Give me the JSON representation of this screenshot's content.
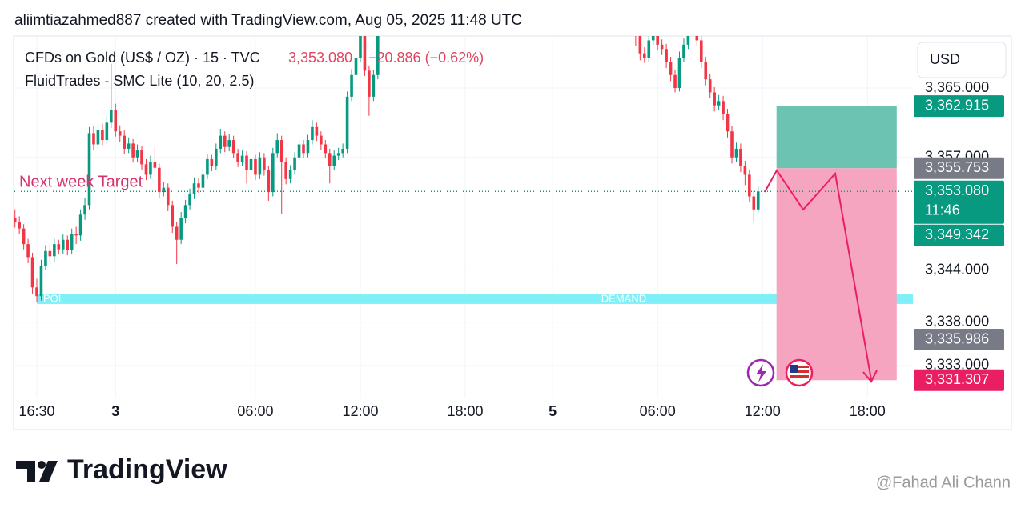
{
  "header": "aliimtiazahmed887 created with TradingView.com, Aug 05, 2025 11:48 UTC",
  "logo": "TradingView",
  "watermark": "@Fahad Ali Chann",
  "chart_data": {
    "type": "candlestick",
    "legend": {
      "symbol": "CFDs on Gold (US$ / OZ) · 15 · TVC",
      "price": "3,353.080",
      "change": "−20.886 (−0.62%)",
      "indicator": "FluidTrades - SMC Lite  (10, 20, 2.5)"
    },
    "currency": "USD",
    "up_color": "#089981",
    "down_color": "#f23645",
    "xlim": [
      -5.13,
      200.4
    ],
    "xticks": [
      {
        "value": 0,
        "label": "16:30"
      },
      {
        "value": 18,
        "label": "3",
        "bold": true
      },
      {
        "value": 50,
        "label": "06:00"
      },
      {
        "value": 74,
        "label": "12:00"
      },
      {
        "value": 98,
        "label": "18:00"
      },
      {
        "value": 118,
        "label": "5",
        "bold": true
      },
      {
        "value": 142,
        "label": "06:00"
      },
      {
        "value": 166,
        "label": "12:00"
      },
      {
        "value": 190,
        "label": "18:00"
      }
    ],
    "ylim": [
      3329.3,
      3371.0
    ],
    "yticks": [
      {
        "value": 3365,
        "label": "3,365.000"
      },
      {
        "value": 3357,
        "label": "3,357.000"
      },
      {
        "value": 3344,
        "label": "3,344.000"
      },
      {
        "value": 3338,
        "label": "3,338.000"
      },
      {
        "value": 3333,
        "label": "3,333.000"
      }
    ],
    "grid": true,
    "x": [
      -5,
      -4,
      -3,
      -2,
      -1,
      0,
      1,
      2,
      3,
      4,
      5,
      6,
      7,
      8,
      9,
      10,
      11,
      12,
      13,
      14,
      15,
      16,
      17,
      18,
      19,
      20,
      21,
      22,
      23,
      24,
      25,
      26,
      27,
      28,
      29,
      30,
      31,
      32,
      33,
      34,
      35,
      36,
      37,
      38,
      39,
      40,
      41,
      42,
      43,
      44,
      45,
      46,
      47,
      48,
      49,
      50,
      51,
      52,
      53,
      54,
      55,
      56,
      57,
      58,
      59,
      60,
      61,
      62,
      63,
      64,
      65,
      66,
      67,
      68,
      69,
      70,
      71,
      72,
      73,
      74,
      75,
      76,
      77,
      78,
      79,
      137,
      138,
      139,
      140,
      141,
      142,
      143,
      144,
      145,
      146,
      147,
      148,
      149,
      150,
      151,
      152,
      153,
      154,
      155,
      156,
      157,
      158,
      159,
      160,
      161,
      162,
      163,
      164,
      165
    ],
    "open": [
      3350.0,
      3349.5,
      3348.8,
      3347.0,
      3345.5,
      3342.0,
      3341.0,
      3344.5,
      3346.2,
      3345.6,
      3347.0,
      3346.4,
      3347.5,
      3346.3,
      3348.2,
      3348.0,
      3350.4,
      3351.5,
      3359.8,
      3358.5,
      3360.2,
      3359.0,
      3361.0,
      3362.5,
      3360.0,
      3359.5,
      3358.0,
      3358.6,
      3357.0,
      3357.8,
      3356.2,
      3355.0,
      3356.5,
      3355.8,
      3353.0,
      3353.5,
      3351.5,
      3349.0,
      3347.5,
      3350.0,
      3351.5,
      3352.8,
      3354.0,
      3353.5,
      3355.0,
      3356.8,
      3356.0,
      3358.0,
      3359.5,
      3358.2,
      3359.0,
      3357.5,
      3356.5,
      3357.2,
      3355.5,
      3356.8,
      3355.0,
      3357.0,
      3355.5,
      3353.0,
      3357.5,
      3359.0,
      3356.5,
      3354.5,
      3355.5,
      3357.0,
      3358.5,
      3357.5,
      3359.0,
      3360.5,
      3359.5,
      3358.5,
      3357.5,
      3356.0,
      3357.2,
      3357.5,
      3358.0,
      3364.0,
      3366.5,
      3368.5,
      3372.0,
      3367.0,
      3364.0,
      3366.5,
      3371.5,
      3372.5,
      3371.0,
      3369.0,
      3368.5,
      3370.5,
      3371.5,
      3370.0,
      3369.5,
      3368.0,
      3366.5,
      3365.0,
      3368.5,
      3370.0,
      3371.5,
      3372.0,
      3370.5,
      3368.0,
      3366.0,
      3364.5,
      3363.0,
      3363.5,
      3362.0,
      3360.0,
      3357.0,
      3358.0,
      3356.0,
      3355.0,
      3352.5,
      3351.0
    ],
    "high": [
      3351.0,
      3350.2,
      3349.3,
      3347.6,
      3346.0,
      3343.0,
      3345.2,
      3346.9,
      3346.8,
      3347.6,
      3347.5,
      3348.1,
      3348.0,
      3348.8,
      3349.0,
      3351.0,
      3352.3,
      3360.5,
      3360.6,
      3361.0,
      3360.9,
      3361.8,
      3367.8,
      3363.2,
      3360.7,
      3360.1,
      3359.3,
      3359.1,
      3358.5,
      3358.3,
      3356.8,
      3357.2,
      3358.4,
      3356.3,
      3354.2,
      3354.0,
      3352.0,
      3349.6,
      3350.7,
      3352.1,
      3353.4,
      3354.7,
      3354.6,
      3355.6,
      3357.4,
      3357.3,
      3358.6,
      3360.3,
      3360.0,
      3359.7,
      3359.5,
      3358.0,
      3357.8,
      3357.7,
      3357.4,
      3357.3,
      3357.6,
      3357.5,
      3356.0,
      3358.1,
      3359.8,
      3359.5,
      3357.0,
      3356.1,
      3357.6,
      3359.1,
      3359.0,
      3359.6,
      3361.3,
      3361.0,
      3360.0,
      3359.0,
      3358.0,
      3357.8,
      3358.1,
      3358.6,
      3364.6,
      3367.2,
      3369.2,
      3373.0,
      3372.6,
      3367.6,
      3367.1,
      3372.2,
      3374.8,
      3373.2,
      3371.6,
      3369.7,
      3371.2,
      3372.3,
      3372.1,
      3370.6,
      3370.1,
      3368.6,
      3367.1,
      3369.2,
      3370.7,
      3372.2,
      3372.8,
      3372.6,
      3371.1,
      3368.6,
      3366.6,
      3365.1,
      3364.2,
      3364.1,
      3362.6,
      3360.6,
      3358.7,
      3358.6,
      3356.6,
      3355.6,
      3353.1,
      3353.6
    ],
    "low": [
      3348.9,
      3348.2,
      3346.4,
      3344.8,
      3341.2,
      3340.3,
      3340.5,
      3344.0,
      3345.0,
      3345.0,
      3345.8,
      3345.9,
      3345.7,
      3345.9,
      3347.0,
      3347.4,
      3349.8,
      3351.0,
      3357.8,
      3358.0,
      3358.4,
      3358.5,
      3360.4,
      3359.4,
      3358.8,
      3357.4,
      3357.5,
      3356.4,
      3356.5,
      3355.6,
      3354.4,
      3354.5,
      3355.2,
      3352.3,
      3352.5,
      3350.8,
      3348.3,
      3344.7,
      3347.0,
      3349.4,
      3351.0,
      3352.2,
      3352.9,
      3353.0,
      3354.5,
      3355.4,
      3355.5,
      3357.5,
      3357.6,
      3357.7,
      3356.9,
      3355.9,
      3356.0,
      3354.0,
      3355.0,
      3354.4,
      3354.5,
      3354.9,
      3352.0,
      3352.5,
      3357.0,
      3350.5,
      3353.9,
      3354.0,
      3355.0,
      3356.5,
      3356.9,
      3357.0,
      3358.5,
      3358.9,
      3357.9,
      3356.9,
      3354.0,
      3355.5,
      3356.7,
      3357.0,
      3357.5,
      3363.5,
      3366.0,
      3368.0,
      3366.4,
      3361.8,
      3363.5,
      3366.0,
      3371.0,
      3369.8,
      3368.2,
      3367.9,
      3368.0,
      3370.0,
      3369.4,
      3368.8,
      3367.3,
      3365.8,
      3364.5,
      3364.6,
      3368.0,
      3369.5,
      3371.0,
      3369.8,
      3367.3,
      3365.3,
      3363.8,
      3362.3,
      3362.5,
      3361.3,
      3359.3,
      3356.3,
      3356.5,
      3355.3,
      3353.8,
      3351.8,
      3349.5,
      3350.6
    ],
    "close": [
      3349.5,
      3348.8,
      3347.0,
      3345.5,
      3342.0,
      3341.0,
      3344.5,
      3346.2,
      3345.6,
      3347.0,
      3346.4,
      3347.5,
      3346.3,
      3348.2,
      3348.0,
      3350.4,
      3351.5,
      3359.8,
      3358.5,
      3360.2,
      3359.0,
      3361.0,
      3362.5,
      3360.0,
      3359.5,
      3358.0,
      3358.6,
      3357.0,
      3357.8,
      3356.2,
      3355.0,
      3356.5,
      3355.8,
      3353.0,
      3353.5,
      3351.5,
      3349.0,
      3347.5,
      3350.0,
      3351.5,
      3352.8,
      3354.0,
      3353.5,
      3355.0,
      3356.8,
      3356.0,
      3358.0,
      3359.5,
      3358.2,
      3359.0,
      3357.5,
      3356.5,
      3357.2,
      3355.5,
      3356.8,
      3355.0,
      3357.0,
      3355.5,
      3353.0,
      3357.5,
      3359.0,
      3356.5,
      3354.5,
      3355.5,
      3357.0,
      3358.5,
      3357.5,
      3359.0,
      3360.5,
      3359.5,
      3358.5,
      3357.5,
      3356.0,
      3357.2,
      3357.5,
      3358.0,
      3364.0,
      3366.5,
      3368.5,
      3372.0,
      3367.0,
      3364.0,
      3366.5,
      3371.5,
      3374.0,
      3371.0,
      3369.0,
      3368.5,
      3370.5,
      3371.5,
      3370.0,
      3369.5,
      3368.0,
      3366.5,
      3365.0,
      3368.5,
      3370.0,
      3371.5,
      3372.0,
      3370.5,
      3368.0,
      3366.0,
      3364.5,
      3363.0,
      3363.5,
      3362.0,
      3360.0,
      3357.0,
      3358.0,
      3356.0,
      3355.0,
      3352.5,
      3351.0,
      3353.08
    ],
    "zone": {
      "x0": 0,
      "top": 3341.2,
      "bottom": 3340.1,
      "color": "#80f0f8",
      "left_label": "POI",
      "center_label": "DEMAND"
    },
    "position": {
      "x": [
        169.2,
        196.7
      ],
      "top": 3362.915,
      "entry": 3355.753,
      "bottom": 3331.307,
      "top_color": "#6cc3b2",
      "bottom_color": "#f6a5c0"
    },
    "annotation": "Next week Target",
    "price_labels": [
      {
        "value": 3362.915,
        "label": "3,362.915",
        "color": "#089981"
      },
      {
        "value": 3355.753,
        "label": "3,355.753",
        "color": "#787b86"
      },
      {
        "value": 3353.08,
        "label": "3,353.080",
        "sublabel": "11:46",
        "color": "#089981"
      },
      {
        "value": 3349.342,
        "label": "3,349.342",
        "color": "#089981"
      },
      {
        "value": 3335.986,
        "label": "3,335.986",
        "color": "#787b86"
      },
      {
        "value": 3331.307,
        "label": "3,331.307",
        "color": "#e91e63"
      }
    ]
  }
}
